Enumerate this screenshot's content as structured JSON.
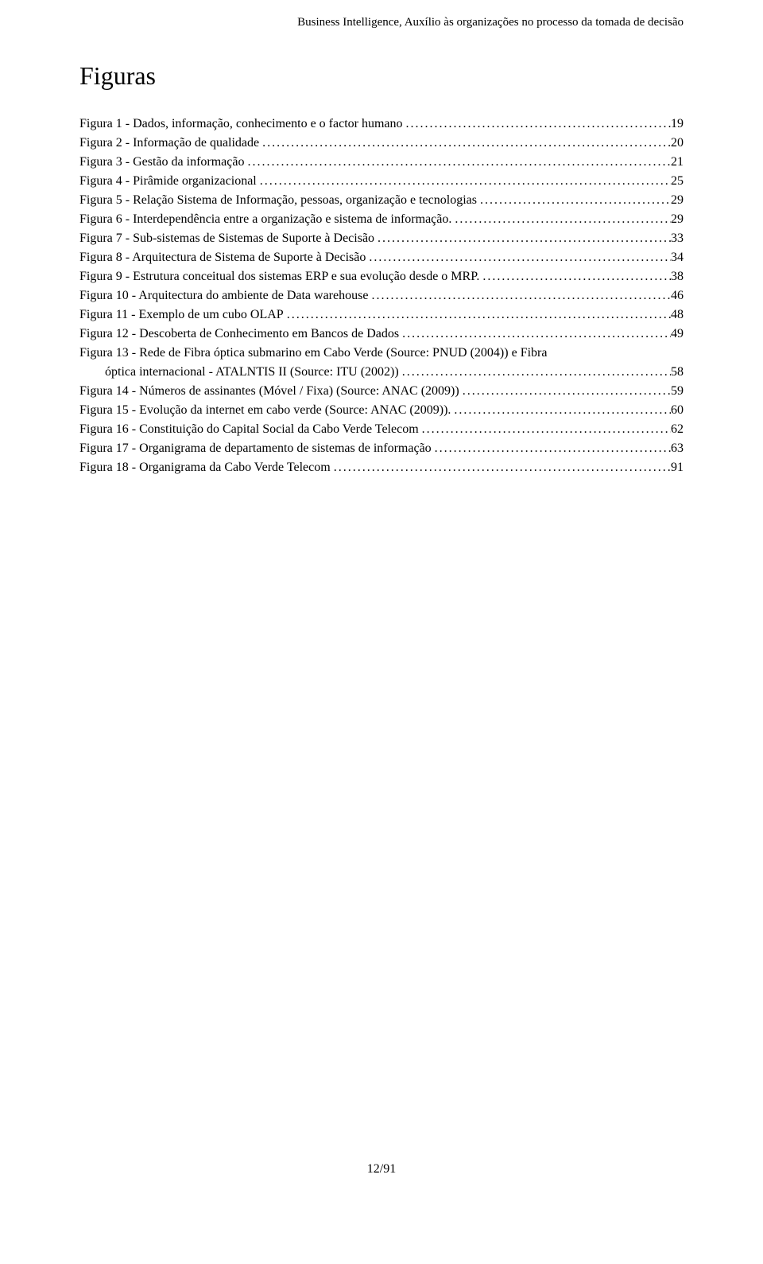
{
  "header": "Business Intelligence, Auxílio às organizações no processo da tomada de decisão",
  "title": "Figuras",
  "entries": [
    {
      "label": "Figura 1 - Dados, informação, conhecimento e o factor humano",
      "page": "19",
      "indent": false
    },
    {
      "label": "Figura 2 - Informação de qualidade",
      "page": "20",
      "indent": false
    },
    {
      "label": "Figura 3 - Gestão da informação",
      "page": "21",
      "indent": false
    },
    {
      "label": "Figura 4 - Pirâmide organizacional",
      "page": "25",
      "indent": false
    },
    {
      "label": "Figura 5 - Relação Sistema de Informação, pessoas, organização e tecnologias",
      "page": "29",
      "indent": false
    },
    {
      "label": "Figura 6 - Interdependência entre a organização e sistema de informação.",
      "page": "29",
      "indent": false
    },
    {
      "label": "Figura 7 - Sub-sistemas de Sistemas de Suporte à Decisão",
      "page": "33",
      "indent": false
    },
    {
      "label": "Figura 8 - Arquitectura de Sistema de Suporte à Decisão",
      "page": "34",
      "indent": false
    },
    {
      "label": "Figura 9 - Estrutura conceitual dos sistemas ERP e sua evolução desde o MRP. ",
      "page": "38",
      "indent": false
    },
    {
      "label": "Figura 10 - Arquitectura do ambiente de Data warehouse",
      "page": "46",
      "indent": false
    },
    {
      "label": "Figura 11 - Exemplo de um cubo OLAP",
      "page": "48",
      "indent": false
    },
    {
      "label": "Figura 12 - Descoberta de Conhecimento em Bancos de Dados",
      "page": "49",
      "indent": false
    },
    {
      "label": "Figura 13 - Rede de Fibra óptica submarino em Cabo Verde (Source: PNUD (2004)) e Fibra",
      "page": null,
      "indent": false
    },
    {
      "label": "óptica internacional - ATALNTIS II (Source: ITU (2002))",
      "page": "58",
      "indent": true
    },
    {
      "label": "Figura 14 - Números de assinantes (Móvel / Fixa) (Source: ANAC (2009))",
      "page": "59",
      "indent": false
    },
    {
      "label": "Figura 15 - Evolução da internet em cabo verde (Source: ANAC (2009)).",
      "page": "60",
      "indent": false
    },
    {
      "label": "Figura 16 - Constituição do Capital Social da Cabo Verde Telecom",
      "page": "62",
      "indent": false
    },
    {
      "label": "Figura 17 - Organigrama de departamento de sistemas de informação",
      "page": "63",
      "indent": false
    },
    {
      "label": "Figura 18 - Organigrama da Cabo Verde Telecom",
      "page": "91",
      "indent": false
    }
  ],
  "footer": "12/91"
}
